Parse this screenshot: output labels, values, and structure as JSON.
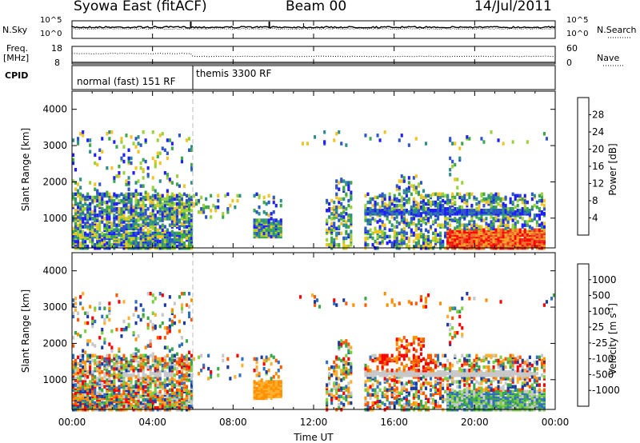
{
  "header": {
    "station": "Syowa East (fitACF)",
    "beam": "Beam 00",
    "date": "14/Jul/2011"
  },
  "strip_panels": {
    "nsky_label": "N.Sky",
    "nsky_ticks": [
      "10^5",
      "10^0"
    ],
    "nsearch_label": "N.Search",
    "nsearch_ticks": [
      "10^5",
      "10^0"
    ],
    "freq_label": "Freq.",
    "freq_unit": "[MHz]",
    "freq_ticks": [
      "18",
      "8"
    ],
    "nave_label": "Nave",
    "nave_ticks": [
      "60",
      "0"
    ],
    "cpid_label": "CPID",
    "cpid_segments": [
      {
        "label": "normal (fast) 151 RF",
        "start_h": 0,
        "end_h": 6
      },
      {
        "label": "themis 3300 RF",
        "start_h": 6,
        "end_h": 24
      }
    ]
  },
  "chart_data": [
    {
      "type": "heatmap",
      "panel": "power",
      "ylabel": "Slant Range [km]",
      "ylim": [
        180,
        4500
      ],
      "yticks": [
        1000,
        2000,
        3000,
        4000
      ],
      "xlim": [
        0,
        24
      ],
      "colorbar": {
        "label": "Power [dB]",
        "ticks": [
          "4",
          "8",
          "12",
          "16",
          "20",
          "24",
          "28"
        ],
        "colors": [
          "#1e1eff",
          "#2e55c9",
          "#2e8f8a",
          "#3da84a",
          "#9bd23a",
          "#f2c526",
          "#f2a52a",
          "#f0702a",
          "#e83020",
          "#ff0000"
        ]
      },
      "features": [
        {
          "t0": 0.0,
          "t1": 5.9,
          "r0": 200,
          "r1": 1700,
          "desc": "dense echoes"
        },
        {
          "t0": 9.0,
          "t1": 10.4,
          "r0": 500,
          "r1": 900,
          "desc": "band"
        },
        {
          "t0": 14.5,
          "t1": 22.8,
          "r0": 1100,
          "r1": 1200,
          "desc": "band"
        },
        {
          "t0": 18.5,
          "t1": 23.5,
          "r0": 200,
          "r1": 700,
          "desc": "strong power"
        }
      ]
    },
    {
      "type": "heatmap",
      "panel": "velocity",
      "ylabel": "Slant Range [km]",
      "xlabel": "Time UT",
      "ylim": [
        180,
        4500
      ],
      "yticks": [
        1000,
        2000,
        3000,
        4000
      ],
      "xlim": [
        0,
        24
      ],
      "xticks": [
        "00:00",
        "04:00",
        "08:00",
        "12:00",
        "16:00",
        "20:00",
        "00:00"
      ],
      "colorbar": {
        "label": "Velocity [m s",
        "label_sup": "-1",
        "ticks": [
          "-1000",
          "-500",
          "-100",
          "-25",
          "25",
          "100",
          "500",
          "1000"
        ],
        "colors": [
          "#ff0000",
          "#ff5a00",
          "#ff9000",
          "#ffb030",
          "#c8c8c8",
          "#7cd040",
          "#3aa84a",
          "#2e6fc0",
          "#1a3aa0"
        ]
      },
      "features": [
        {
          "t0": 0.0,
          "t1": 5.9,
          "r0": 200,
          "r1": 1700,
          "desc": "mixed"
        },
        {
          "t0": 2.5,
          "t1": 5.0,
          "r0": 1100,
          "r1": 1250,
          "desc": "ground scatter band"
        },
        {
          "t0": 14.5,
          "t1": 22.8,
          "r0": 1100,
          "r1": 1200,
          "desc": "ground scatter band"
        }
      ]
    }
  ]
}
